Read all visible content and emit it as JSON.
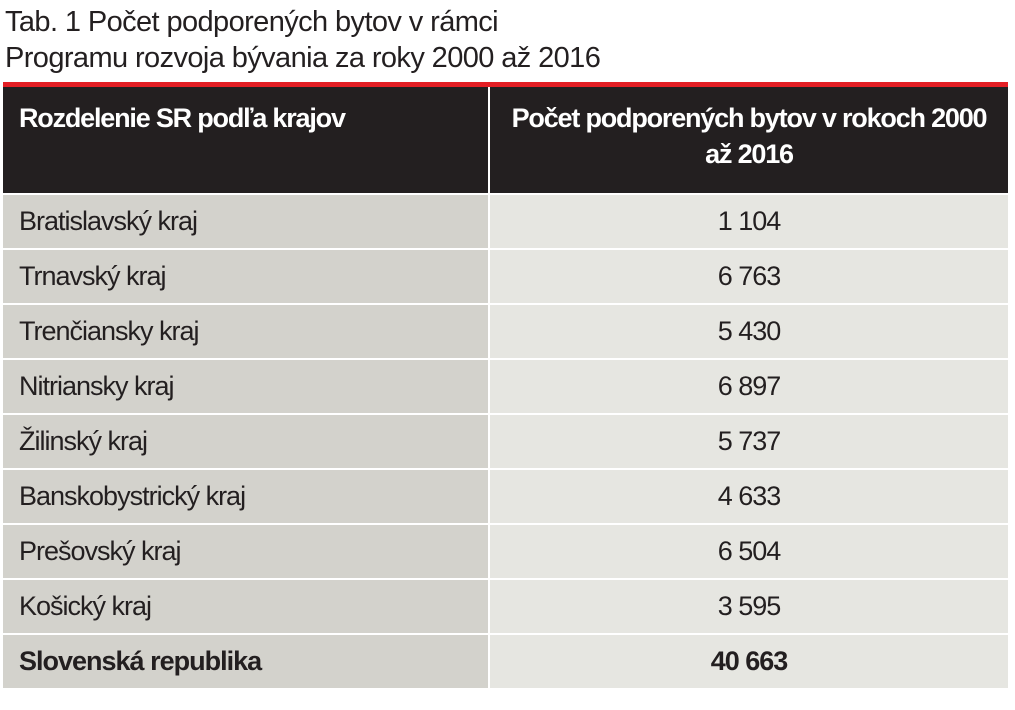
{
  "title": {
    "line1": "Tab. 1 Počet podporených bytov v rámci",
    "line2": "Programu rozvoja bývania za roky 2000 až 2016"
  },
  "colors": {
    "accent": "#e31e24",
    "header_bg": "#231f20",
    "col1_bg": "#d3d2cc",
    "col2_bg": "#e6e6e1"
  },
  "table": {
    "headers": [
      "Rozdelenie SR podľa krajov",
      "Počet podporených bytov v rokoch 2000 až 2016"
    ],
    "rows": [
      {
        "region": "Bratislavský kraj",
        "count": "1 104"
      },
      {
        "region": "Trnavský kraj",
        "count": "6 763"
      },
      {
        "region": "Trenčiansky kraj",
        "count": "5 430"
      },
      {
        "region": "Nitriansky kraj",
        "count": "6 897"
      },
      {
        "region": "Žilinský kraj",
        "count": "5 737"
      },
      {
        "region": "Banskobystrický kraj",
        "count": "4 633"
      },
      {
        "region": "Prešovský kraj",
        "count": "6 504"
      },
      {
        "region": "Košický kraj",
        "count": "3 595"
      }
    ],
    "total": {
      "region": "Slovenská republika",
      "count": "40 663"
    }
  }
}
